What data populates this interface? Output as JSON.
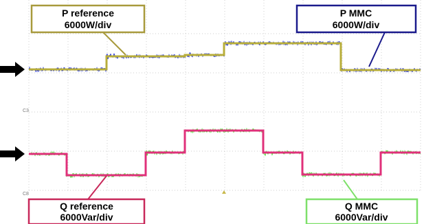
{
  "labels": [
    {
      "name": "P reference",
      "scale": "6000W/div"
    },
    {
      "name": "P MMC",
      "scale": "6000W/div"
    },
    {
      "name": "Q reference",
      "scale": "6000Var/div"
    },
    {
      "name": "Q MMC",
      "scale": "6000Var/div"
    }
  ],
  "channel_markers": [
    "C3",
    "C8"
  ]
}
